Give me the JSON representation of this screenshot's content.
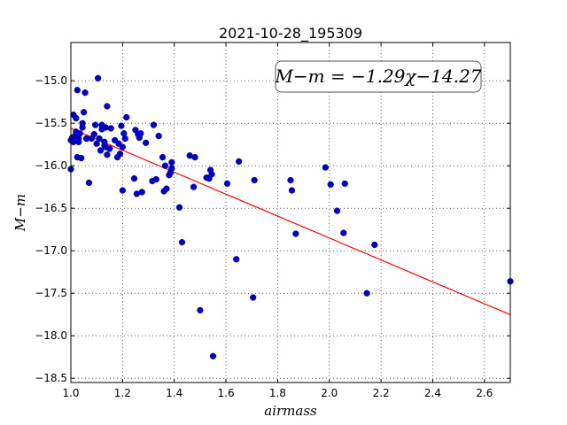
{
  "chart_data": {
    "type": "scatter",
    "title": "2021-10-28_195309",
    "xlabel": "airmass",
    "ylabel": "M−m",
    "xlim": [
      1.0,
      2.7
    ],
    "ylim": [
      -18.55,
      -14.55
    ],
    "y_inverted": true,
    "grid": true,
    "xticks": [
      1.0,
      1.2,
      1.4,
      1.6,
      1.8,
      2.0,
      2.2,
      2.4,
      2.6
    ],
    "xtick_labels": [
      "1.0",
      "1.2",
      "1.4",
      "1.6",
      "1.8",
      "2.0",
      "2.2",
      "2.4",
      "2.6"
    ],
    "yticks": [
      -15.0,
      -15.5,
      -16.0,
      -16.5,
      -17.0,
      -17.5,
      -18.0,
      -18.5
    ],
    "ytick_labels": [
      "−15.0",
      "−15.5",
      "−16.0",
      "−16.5",
      "−17.0",
      "−17.5",
      "−18.0",
      "−18.5"
    ],
    "annotation": "M−m = −1.29χ−14.27",
    "fit": {
      "slope": -1.29,
      "intercept": -14.27,
      "color": "#ff0000"
    },
    "point_color": "#0000cc",
    "points": [
      [
        1.0,
        -15.7
      ],
      [
        1.0,
        -16.04
      ],
      [
        1.005,
        -15.67
      ],
      [
        1.01,
        -15.72
      ],
      [
        1.01,
        -15.4
      ],
      [
        1.015,
        -15.65
      ],
      [
        1.02,
        -15.44
      ],
      [
        1.02,
        -15.6
      ],
      [
        1.025,
        -15.9
      ],
      [
        1.025,
        -15.11
      ],
      [
        1.03,
        -15.68
      ],
      [
        1.03,
        -15.72
      ],
      [
        1.035,
        -15.62
      ],
      [
        1.04,
        -15.91
      ],
      [
        1.045,
        -15.5
      ],
      [
        1.045,
        -15.55
      ],
      [
        1.05,
        -15.37
      ],
      [
        1.055,
        -15.14
      ],
      [
        1.06,
        -15.68
      ],
      [
        1.07,
        -16.2
      ],
      [
        1.08,
        -15.68
      ],
      [
        1.09,
        -15.63
      ],
      [
        1.095,
        -15.52
      ],
      [
        1.1,
        -15.74
      ],
      [
        1.105,
        -14.97
      ],
      [
        1.11,
        -15.68
      ],
      [
        1.115,
        -15.82
      ],
      [
        1.12,
        -15.57
      ],
      [
        1.12,
        -15.52
      ],
      [
        1.13,
        -15.72
      ],
      [
        1.13,
        -15.76
      ],
      [
        1.135,
        -15.55
      ],
      [
        1.135,
        -15.78
      ],
      [
        1.14,
        -15.87
      ],
      [
        1.14,
        -15.3
      ],
      [
        1.15,
        -15.8
      ],
      [
        1.155,
        -15.56
      ],
      [
        1.17,
        -15.7
      ],
      [
        1.18,
        -15.9
      ],
      [
        1.185,
        -15.74
      ],
      [
        1.19,
        -15.86
      ],
      [
        1.195,
        -15.53
      ],
      [
        1.2,
        -16.29
      ],
      [
        1.2,
        -15.78
      ],
      [
        1.205,
        -15.62
      ],
      [
        1.21,
        -15.68
      ],
      [
        1.215,
        -15.43
      ],
      [
        1.245,
        -16.15
      ],
      [
        1.25,
        -15.58
      ],
      [
        1.255,
        -16.33
      ],
      [
        1.26,
        -15.63
      ],
      [
        1.265,
        -15.67
      ],
      [
        1.27,
        -15.62
      ],
      [
        1.275,
        -16.31
      ],
      [
        1.29,
        -15.73
      ],
      [
        1.315,
        -16.18
      ],
      [
        1.32,
        -15.52
      ],
      [
        1.33,
        -16.16
      ],
      [
        1.34,
        -15.65
      ],
      [
        1.355,
        -15.9
      ],
      [
        1.36,
        -16.3
      ],
      [
        1.365,
        -16.0
      ],
      [
        1.37,
        -16.27
      ],
      [
        1.38,
        -16.11
      ],
      [
        1.385,
        -16.08
      ],
      [
        1.39,
        -15.96
      ],
      [
        1.39,
        -16.03
      ],
      [
        1.42,
        -16.49
      ],
      [
        1.43,
        -16.9
      ],
      [
        1.46,
        -15.88
      ],
      [
        1.475,
        -16.25
      ],
      [
        1.48,
        -15.9
      ],
      [
        1.5,
        -17.7
      ],
      [
        1.525,
        -16.14
      ],
      [
        1.535,
        -16.15
      ],
      [
        1.54,
        -16.05
      ],
      [
        1.545,
        -16.1
      ],
      [
        1.55,
        -18.24
      ],
      [
        1.605,
        -16.21
      ],
      [
        1.64,
        -17.1
      ],
      [
        1.65,
        -15.95
      ],
      [
        1.705,
        -17.55
      ],
      [
        1.71,
        -16.17
      ],
      [
        1.85,
        -16.17
      ],
      [
        1.855,
        -16.29
      ],
      [
        1.87,
        -16.8
      ],
      [
        1.985,
        -16.02
      ],
      [
        2.005,
        -16.22
      ],
      [
        2.03,
        -16.53
      ],
      [
        2.055,
        -16.79
      ],
      [
        2.06,
        -16.21
      ],
      [
        2.145,
        -17.5
      ],
      [
        2.175,
        -16.93
      ],
      [
        2.7,
        -17.36
      ]
    ]
  }
}
